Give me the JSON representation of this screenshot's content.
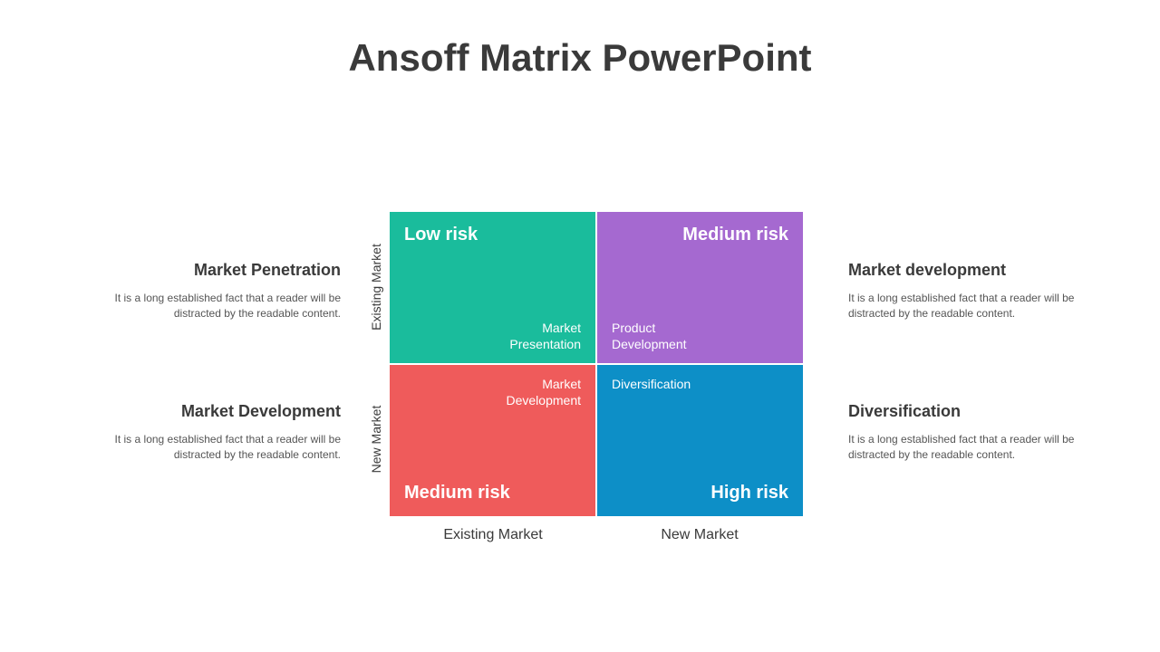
{
  "title": "Ansoff Matrix PowerPoint",
  "colors": {
    "tl": "#1abc9c",
    "tr": "#a569d0",
    "bl": "#ef5b5b",
    "br": "#0d8fc7",
    "text_dark": "#3a3a3a",
    "body_text": "#555555"
  },
  "matrix": {
    "quadrants": {
      "tl": {
        "risk": "Low risk",
        "label_line1": "Market",
        "label_line2": "Presentation"
      },
      "tr": {
        "risk": "Medium risk",
        "label_line1": "Product",
        "label_line2": "Development"
      },
      "bl": {
        "risk": "Medium risk",
        "label_line1": "Market",
        "label_line2": "Development"
      },
      "br": {
        "risk": "High risk",
        "label": "Diversification"
      }
    },
    "y_axis": {
      "top": "Existing Market",
      "bottom": "New Market"
    },
    "x_axis": {
      "left": "Existing Market",
      "right": "New Market"
    }
  },
  "side_blocks": {
    "left_top": {
      "heading": "Market Penetration",
      "body": "It is a long established fact that a reader will be distracted by the readable content."
    },
    "left_bot": {
      "heading": "Market Development",
      "body": "It is a long established fact that a reader will be distracted by the readable content."
    },
    "right_top": {
      "heading": "Market development",
      "body": "It is a long established fact that a reader will be distracted by the readable content."
    },
    "right_bot": {
      "heading": "Diversification",
      "body": "It is a long established fact that a reader will be distracted by the readable content."
    }
  },
  "typography": {
    "title_fontsize": 42,
    "heading_fontsize": 18,
    "risk_fontsize": 20,
    "body_fontsize": 12
  }
}
